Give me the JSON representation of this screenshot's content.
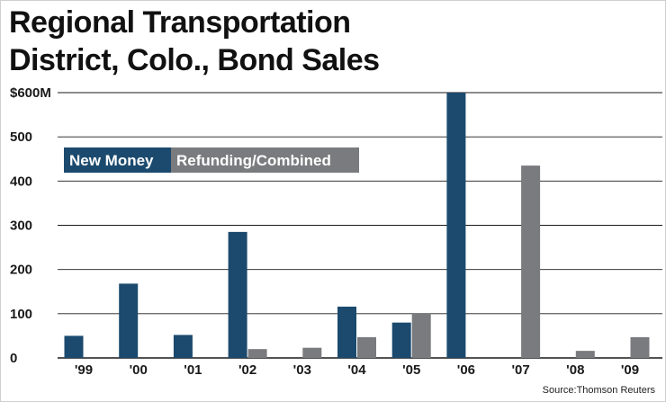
{
  "chart_data": {
    "type": "bar",
    "title_lines": [
      "Regional Transportation",
      "District, Colo., Bond Sales"
    ],
    "categories": [
      "'99",
      "'00",
      "'01",
      "'02",
      "'03",
      "'04",
      "'05",
      "'06",
      "'07",
      "'08",
      "'09"
    ],
    "series": [
      {
        "name": "New Money",
        "color": "#1b4a6e",
        "values": [
          50,
          168,
          52,
          285,
          0,
          116,
          80,
          600,
          0,
          0,
          0
        ]
      },
      {
        "name": "Refunding/Combined",
        "color": "#7a7b7e",
        "values": [
          0,
          0,
          0,
          20,
          23,
          47,
          100,
          0,
          435,
          16,
          47
        ]
      }
    ],
    "ylim": [
      0,
      600
    ],
    "y_ticks": [
      0,
      100,
      200,
      300,
      400,
      500,
      600
    ],
    "y_tick_labels": [
      "0",
      "100",
      "200",
      "300",
      "400",
      "500",
      "$600M"
    ],
    "grid": true,
    "legend_position": "top-left",
    "source": "Source:Thomson Reuters"
  }
}
